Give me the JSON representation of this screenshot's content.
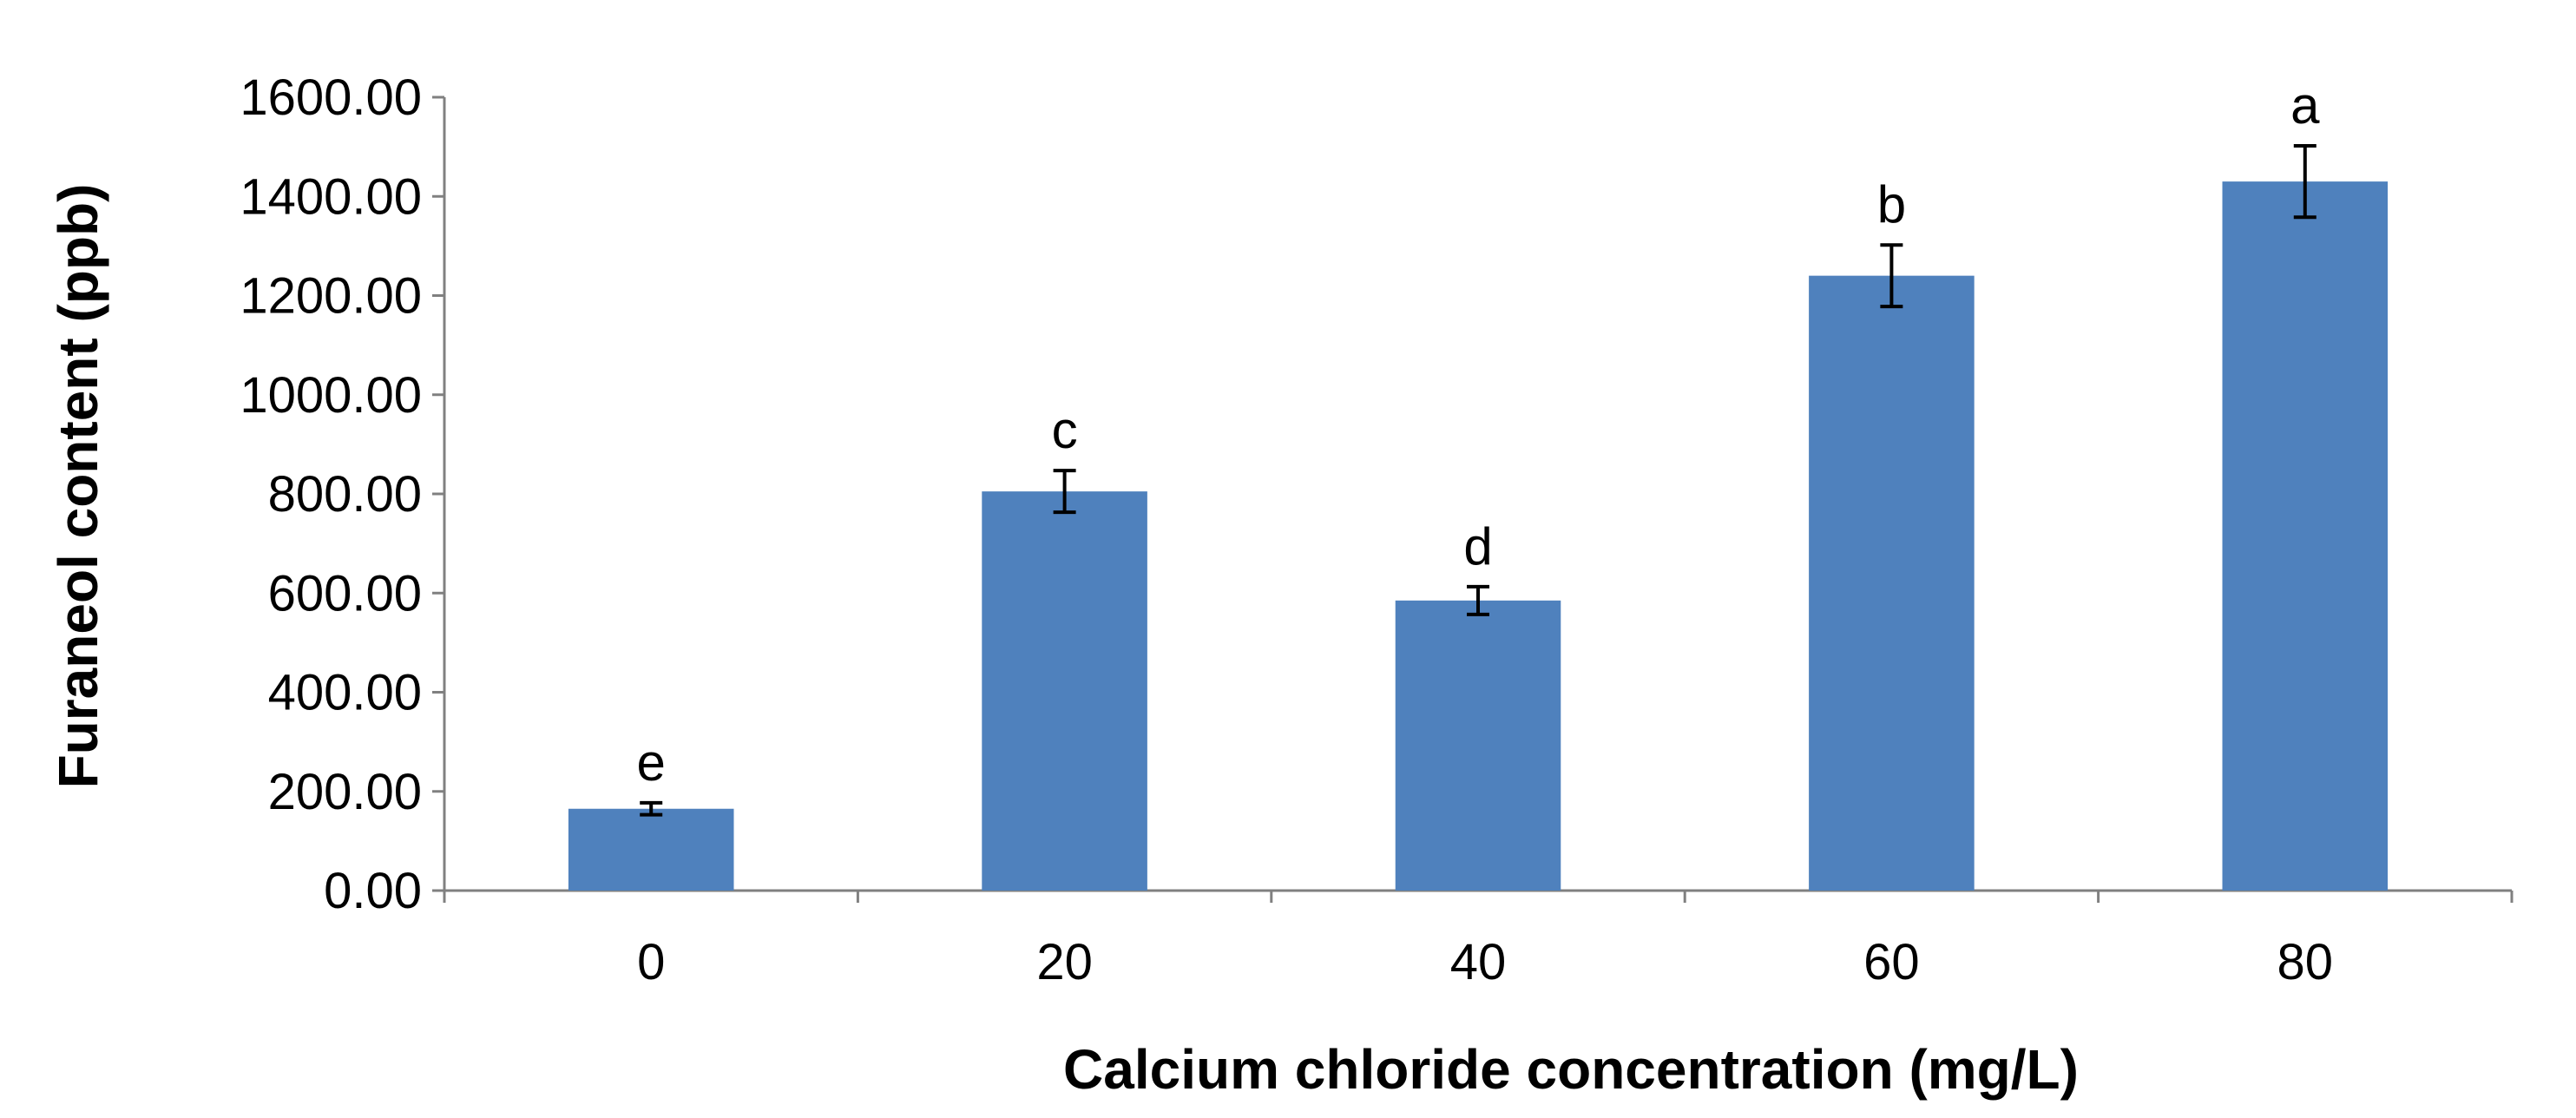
{
  "chart_data": {
    "type": "bar",
    "title": "",
    "xlabel": "Calcium chloride concentration (mg/L)",
    "ylabel": "Furaneol content (ppb)",
    "categories": [
      "0",
      "20",
      "40",
      "60",
      "80"
    ],
    "ylim": [
      0,
      1600
    ],
    "yticks": [
      "0.00",
      "200.00",
      "400.00",
      "600.00",
      "800.00",
      "1000.00",
      "1200.00",
      "1400.00",
      "1600.00"
    ],
    "series": [
      {
        "values": [
          165,
          805,
          585,
          1240,
          1430
        ],
        "error": [
          12,
          42,
          28,
          62,
          72
        ],
        "labels": [
          "e",
          "c",
          "d",
          "b",
          "a"
        ]
      }
    ],
    "bar_color": "#4F81BD",
    "grid": false,
    "legend": "none"
  }
}
